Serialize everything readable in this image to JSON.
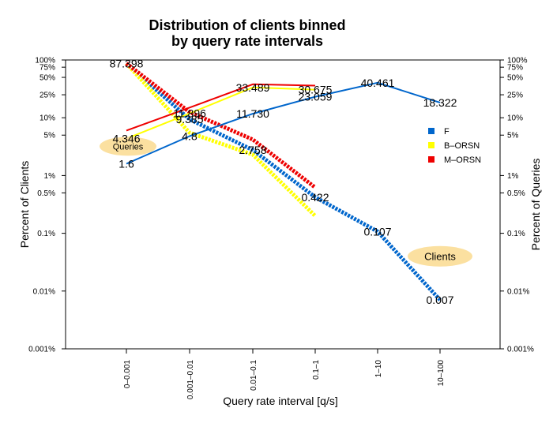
{
  "chart_data": {
    "type": "line",
    "title_lines": [
      "Distribution of clients binned",
      "by query rate intervals"
    ],
    "xlabel": "Query rate interval [q/s]",
    "ylabel_left": "Percent of Clients",
    "ylabel_right": "Percent of Queries",
    "y_scale": "log",
    "ylim_percent": [
      0.001,
      100
    ],
    "y_tick_labels": [
      "100%",
      "75%",
      "50%",
      "25%",
      "10%",
      "5%",
      "1%",
      "0.5%",
      "0.1%",
      "0.01%",
      "0.001%"
    ],
    "y_tick_values": [
      100,
      75,
      50,
      25,
      10,
      5,
      1,
      0.5,
      0.1,
      0.01,
      0.001
    ],
    "categories": [
      "0–0.001",
      "0.001–0.01",
      "0.01–0.1",
      "0.1–1",
      "1–10",
      "10–100"
    ],
    "legend_position": "right",
    "legend": [
      {
        "label": "F",
        "color": "#0066cc"
      },
      {
        "label": "B–ORSN",
        "color": "#ffff00"
      },
      {
        "label": "M–ORSN",
        "color": "#ee0000"
      }
    ],
    "series": [
      {
        "name": "F",
        "measure": "clients",
        "style": "solid",
        "color": "#0066cc",
        "values": [
          1.6,
          4.8,
          11.73,
          23.059,
          40.461,
          18.322
        ]
      },
      {
        "name": "F",
        "measure": "queries",
        "style": "dashed",
        "color": "#0066cc",
        "values": [
          87.398,
          9.385,
          2.758,
          0.422,
          0.107,
          0.007
        ]
      },
      {
        "name": "B–ORSN",
        "measure": "clients",
        "style": "solid",
        "color": "#ffff00",
        "values": [
          4.346,
          11.896,
          33.489,
          30.675,
          null,
          null
        ]
      },
      {
        "name": "B–ORSN",
        "measure": "queries",
        "style": "dashed",
        "color": "#ffff00",
        "values": [
          87.398,
          5.5,
          2.3,
          0.2,
          null,
          null
        ]
      },
      {
        "name": "M–ORSN",
        "measure": "clients",
        "style": "solid",
        "color": "#ee0000",
        "values": [
          6.0,
          15.0,
          38.0,
          36.0,
          null,
          null
        ]
      },
      {
        "name": "M–ORSN",
        "measure": "queries",
        "style": "dashed",
        "color": "#ee0000",
        "values": [
          87.398,
          12.5,
          4.2,
          0.62,
          null,
          null
        ]
      }
    ],
    "data_labels": [
      {
        "text": "87.398",
        "cat": 0,
        "value": 87.398
      },
      {
        "text": "4.346",
        "cat": 0,
        "value": 4.346
      },
      {
        "text": "1.6",
        "cat": 0,
        "value": 1.6
      },
      {
        "text": "11.896",
        "cat": 1,
        "value": 11.896
      },
      {
        "text": "9.385",
        "cat": 1,
        "value": 9.385
      },
      {
        "text": "4.8",
        "cat": 1,
        "value": 4.8
      },
      {
        "text": "33.489",
        "cat": 2,
        "value": 33.489
      },
      {
        "text": "11.730",
        "cat": 2,
        "value": 11.73
      },
      {
        "text": "2.758",
        "cat": 2,
        "value": 2.758
      },
      {
        "text": "30.675",
        "cat": 3,
        "value": 30.675
      },
      {
        "text": "23.059",
        "cat": 3,
        "value": 23.059
      },
      {
        "text": "0.422",
        "cat": 3,
        "value": 0.422
      },
      {
        "text": "40.461",
        "cat": 4,
        "value": 40.461
      },
      {
        "text": "0.107",
        "cat": 4,
        "value": 0.107
      },
      {
        "text": "18.322",
        "cat": 5,
        "value": 18.322
      },
      {
        "text": "0.007",
        "cat": 5,
        "value": 0.007
      }
    ],
    "annotations": [
      {
        "text": "Queries",
        "fill": "#fbe0a0",
        "cat": 0,
        "value": 3.2
      },
      {
        "text": "Clients",
        "fill": "#fbe0a0",
        "cat": 5,
        "value": 0.04
      }
    ]
  }
}
